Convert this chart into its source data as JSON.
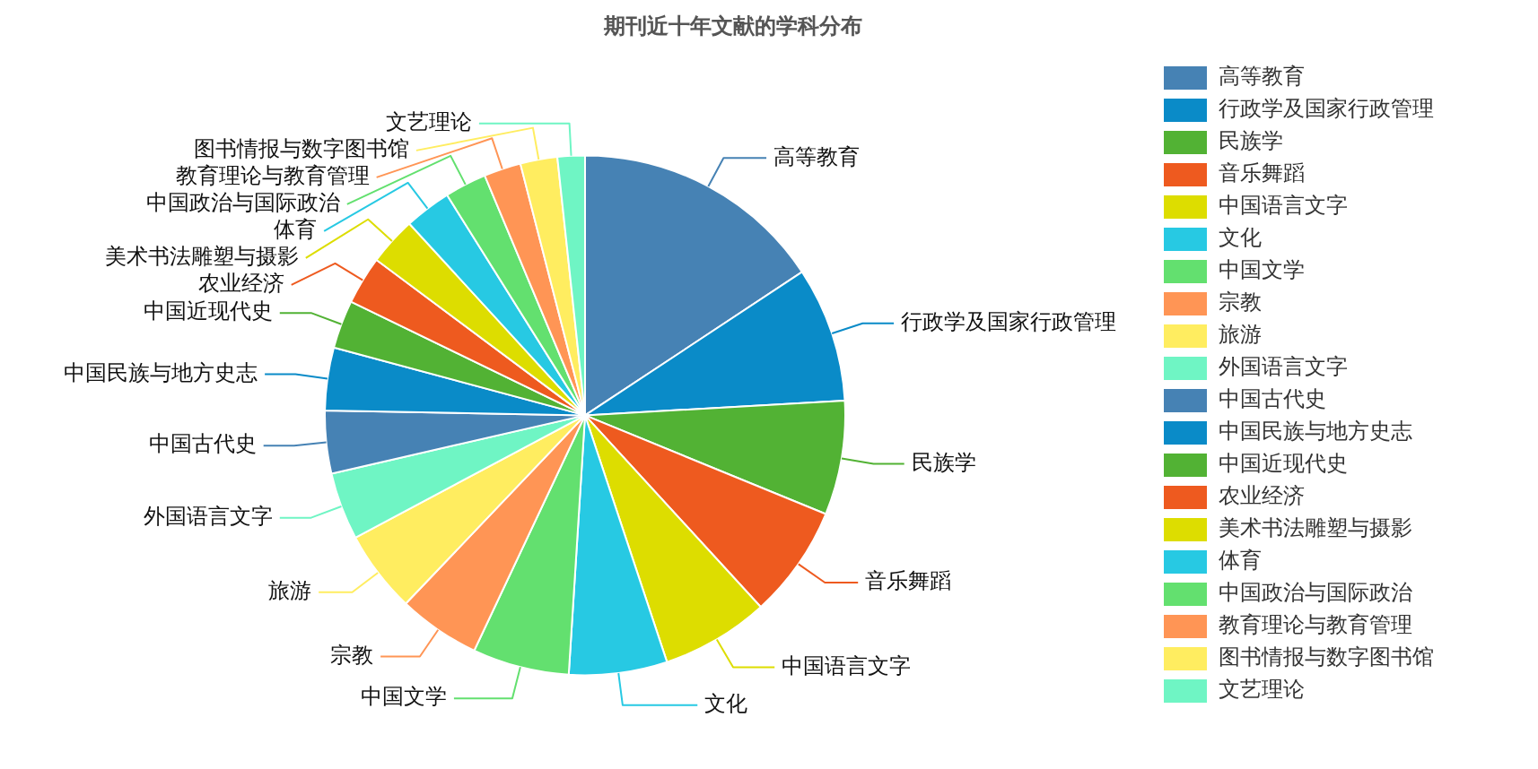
{
  "chart_data": {
    "type": "pie",
    "title": "期刊近十年文献的学科分布",
    "categories": [
      "高等教育",
      "行政学及国家行政管理",
      "民族学",
      "音乐舞蹈",
      "中国语言文字",
      "文化",
      "中国文学",
      "宗教",
      "旅游",
      "外国语言文字",
      "中国古代史",
      "中国民族与地方史志",
      "中国近现代史",
      "农业经济",
      "美术书法雕塑与摄影",
      "体育",
      "中国政治与国际政治",
      "教育理论与教育管理",
      "图书情报与数字图书馆",
      "文艺理论"
    ],
    "values": [
      15.7,
      8.4,
      7.1,
      7.0,
      6.7,
      6.1,
      6.0,
      5.1,
      5.1,
      4.2,
      3.9,
      3.9,
      3.0,
      3.0,
      3.0,
      2.9,
      2.6,
      2.3,
      2.3,
      1.7
    ],
    "colors": [
      "#4682b4",
      "#0a8bc8",
      "#52b234",
      "#ee5a1f",
      "#dddd00",
      "#27c9e3",
      "#63e06f",
      "#ff9555",
      "#ffed60",
      "#6ff5c4",
      "#4682b4",
      "#0a8bc8",
      "#52b234",
      "#ee5a1f",
      "#dddd00",
      "#27c9e3",
      "#63e06f",
      "#ff9555",
      "#ffed60",
      "#6ff5c4"
    ],
    "legend": "right"
  }
}
